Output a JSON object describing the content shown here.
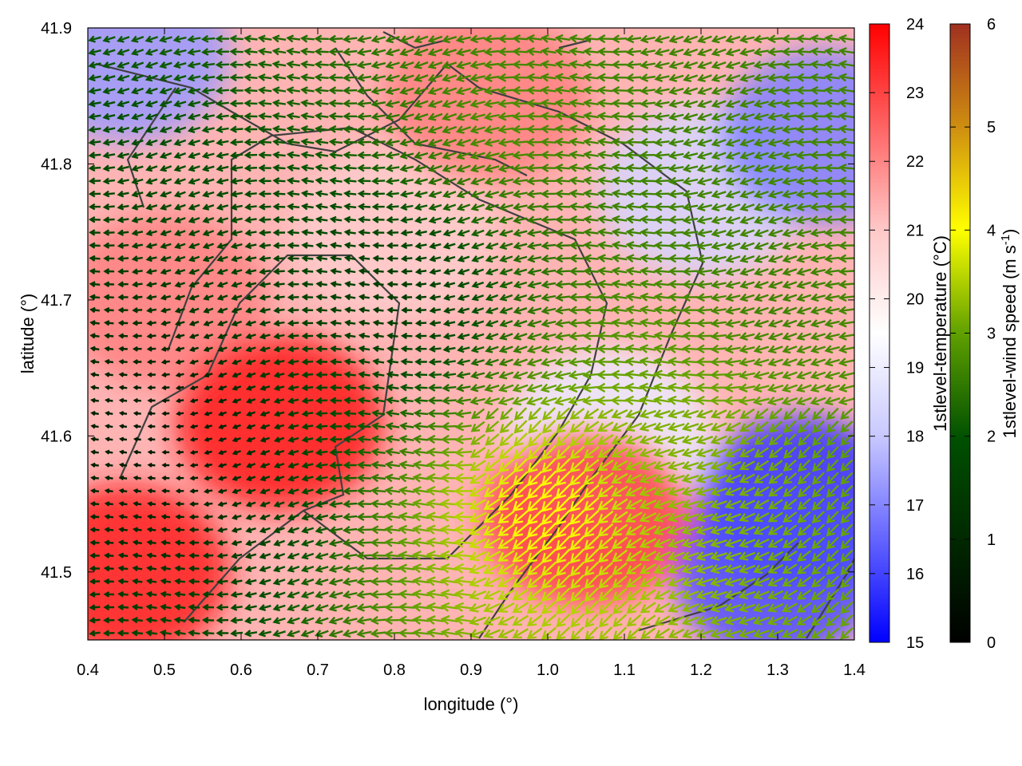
{
  "chart_data": {
    "type": "heatmap",
    "description_series": [
      {
        "name": "1stlevel-temperature",
        "unit": "°C",
        "colormap": [
          "#0000ff",
          "#ffffff",
          "#ff0000"
        ]
      },
      {
        "name": "1stlevel-wind speed",
        "unit": "m s-1",
        "colormap": [
          "#000000",
          "#005000",
          "#60a000",
          "#ffff00",
          "#c08000",
          "#a03020"
        ]
      }
    ],
    "xlabel": "longitude (°)",
    "ylabel": "latitude (°)",
    "xlim": [
      0.4,
      1.4
    ],
    "ylim": [
      41.45,
      41.9
    ],
    "x_ticks": [
      "0.4",
      "0.5",
      "0.6",
      "0.7",
      "0.8",
      "0.9",
      "1.0",
      "1.1",
      "1.2",
      "1.3",
      "1.4"
    ],
    "y_ticks": [
      "41.5",
      "41.6",
      "41.7",
      "41.8",
      "41.9"
    ],
    "temperature_colorbar": {
      "label": "1stlevel-temperature (°C)",
      "range": [
        15,
        24
      ],
      "ticks": [
        "15",
        "16",
        "17",
        "18",
        "19",
        "20",
        "21",
        "22",
        "23",
        "24"
      ]
    },
    "windspeed_colorbar": {
      "label_main": "1stlevel-wind speed (m s",
      "label_sup": "-1",
      "label_end": ")",
      "range": [
        0,
        6
      ],
      "ticks": [
        "0",
        "1",
        "2",
        "3",
        "4",
        "5",
        "6"
      ]
    },
    "temperature_regions": [
      {
        "lon": 0.45,
        "lat": 41.5,
        "value": 23.5
      },
      {
        "lon": 0.5,
        "lat": 41.7,
        "value": 22.0
      },
      {
        "lon": 0.65,
        "lat": 41.61,
        "value": 23.6
      },
      {
        "lon": 0.8,
        "lat": 41.75,
        "value": 20.8
      },
      {
        "lon": 0.92,
        "lat": 41.85,
        "value": 22.0
      },
      {
        "lon": 1.08,
        "lat": 41.6,
        "value": 19.6
      },
      {
        "lon": 1.05,
        "lat": 41.54,
        "value": 23.0
      },
      {
        "lon": 1.2,
        "lat": 41.78,
        "value": 19.2
      },
      {
        "lon": 1.33,
        "lat": 41.55,
        "value": 16.0
      },
      {
        "lon": 1.36,
        "lat": 41.82,
        "value": 17.5
      },
      {
        "lon": 0.45,
        "lat": 41.88,
        "value": 18.0
      },
      {
        "lon": 1.3,
        "lat": 41.5,
        "value": 16.5
      }
    ],
    "wind_regions": [
      {
        "lon": 1.0,
        "lat": 41.55,
        "speed": 4.2
      },
      {
        "lon": 1.2,
        "lat": 41.6,
        "speed": 3.2
      },
      {
        "lon": 0.95,
        "lat": 41.83,
        "speed": 2.8
      },
      {
        "lon": 1.3,
        "lat": 41.7,
        "speed": 2.6
      },
      {
        "lon": 0.8,
        "lat": 41.7,
        "speed": 1.4
      },
      {
        "lon": 0.5,
        "lat": 41.6,
        "speed": 0.6
      }
    ]
  }
}
